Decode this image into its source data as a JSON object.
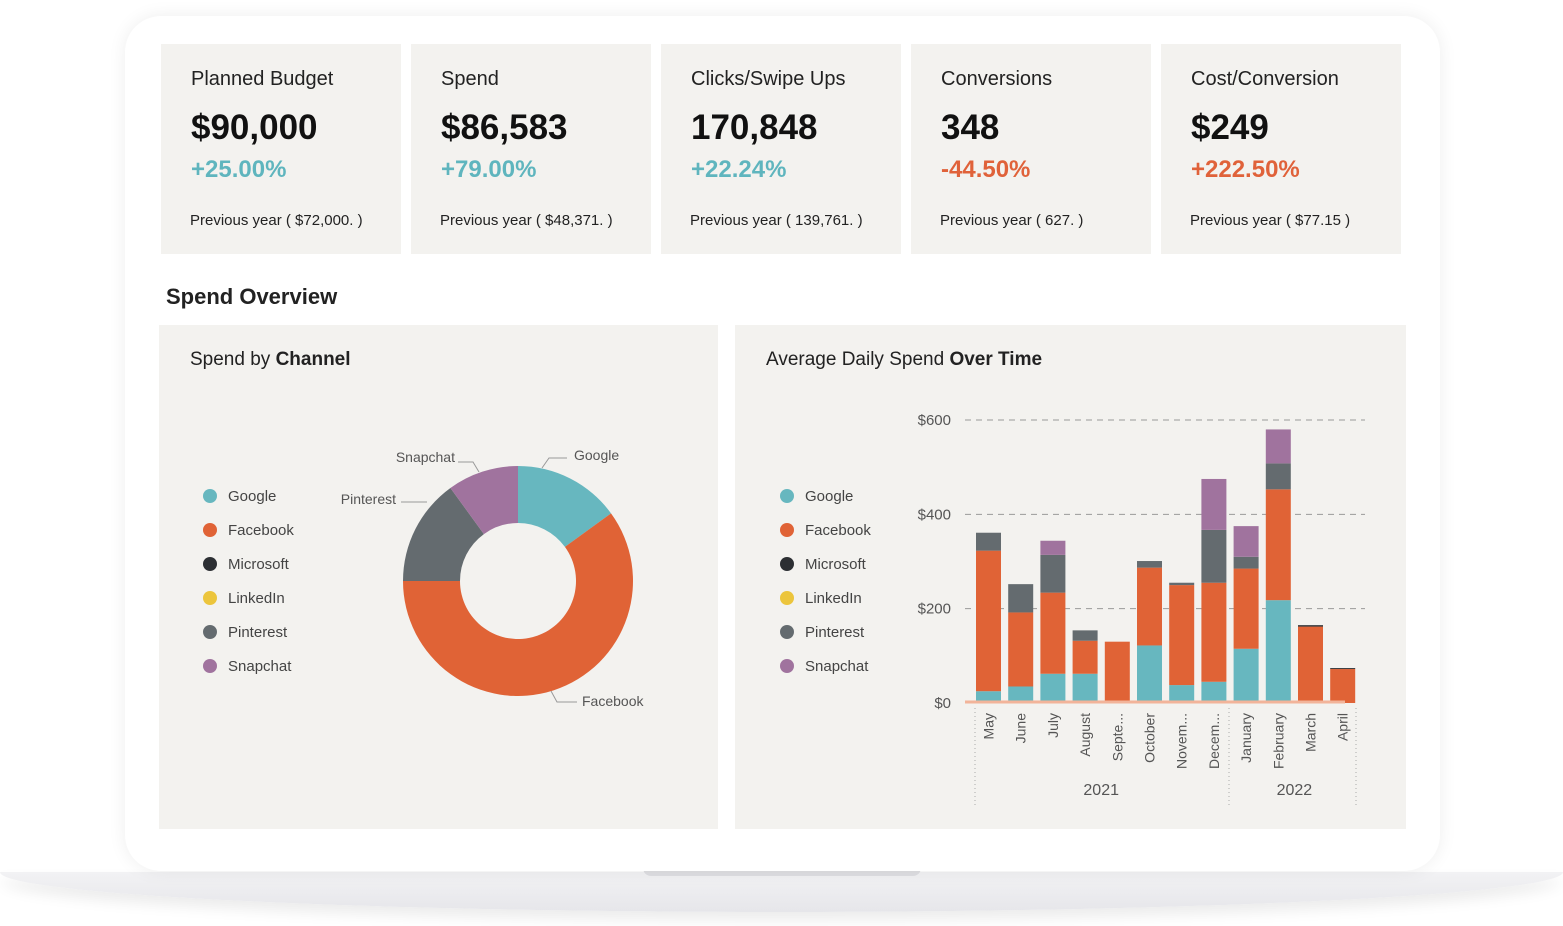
{
  "kpis": [
    {
      "label": "Planned Budget",
      "value": "$90,000",
      "change": "+25.00%",
      "change_color": "#5fb5be",
      "previous": "Previous year ( $72,000. )"
    },
    {
      "label": "Spend",
      "value": "$86,583",
      "change": "+79.00%",
      "change_color": "#5fb5be",
      "previous": "Previous year ( $48,371. )"
    },
    {
      "label": "Clicks/Swipe Ups",
      "value": "170,848",
      "change": "+22.24%",
      "change_color": "#5fb5be",
      "previous": "Previous year ( 139,761. )"
    },
    {
      "label": "Conversions",
      "value": "348",
      "change": "-44.50%",
      "change_color": "#e0623a",
      "previous": "Previous year ( 627. )"
    },
    {
      "label": "Cost/Conversion",
      "value": "$249",
      "change": "+222.50%",
      "change_color": "#e0623a",
      "previous": "Previous year ( $77.15 )"
    }
  ],
  "section_title": "Spend Overview",
  "channels": [
    {
      "name": "Google",
      "color": "#67b7bf"
    },
    {
      "name": "Facebook",
      "color": "#e06336"
    },
    {
      "name": "Microsoft",
      "color": "#2c2f33"
    },
    {
      "name": "LinkedIn",
      "color": "#ecc53c"
    },
    {
      "name": "Pinterest",
      "color": "#646b6f"
    },
    {
      "name": "Snapchat",
      "color": "#a0739e"
    }
  ],
  "donut_panel": {
    "title_pre": "Spend by ",
    "title_bold": "Channel"
  },
  "bar_panel": {
    "title_pre": "Average Daily Spend ",
    "title_bold": "Over Time"
  },
  "chart_data": [
    {
      "type": "pie",
      "title": "Spend by Channel",
      "donut": true,
      "labels": [
        "Google",
        "Facebook",
        "Pinterest",
        "Snapchat"
      ],
      "values": [
        15,
        60,
        15,
        10
      ],
      "colors": [
        "#67b7bf",
        "#e06336",
        "#646b6f",
        "#a0739e"
      ]
    },
    {
      "type": "bar",
      "stacked": true,
      "title": "Average Daily Spend Over Time",
      "categories": [
        "May",
        "June",
        "July",
        "August",
        "Septe...",
        "October",
        "Novem...",
        "Decem...",
        "January",
        "February",
        "March",
        "April"
      ],
      "groups": [
        {
          "label": "2021",
          "count": 8
        },
        {
          "label": "2022",
          "count": 4
        }
      ],
      "series": [
        {
          "name": "Google",
          "color": "#67b7bf",
          "values": [
            25,
            35,
            62,
            62,
            0,
            122,
            38,
            45,
            115,
            218,
            0,
            0
          ]
        },
        {
          "name": "Facebook",
          "color": "#e06336",
          "values": [
            298,
            157,
            172,
            70,
            130,
            165,
            212,
            210,
            170,
            235,
            162,
            72
          ]
        },
        {
          "name": "Microsoft",
          "color": "#2c2f33",
          "values": [
            0,
            0,
            0,
            0,
            0,
            0,
            0,
            0,
            0,
            0,
            3,
            2
          ]
        },
        {
          "name": "LinkedIn",
          "color": "#ecc53c",
          "values": [
            0,
            0,
            0,
            0,
            0,
            0,
            0,
            0,
            0,
            0,
            0,
            0
          ]
        },
        {
          "name": "Pinterest",
          "color": "#646b6f",
          "values": [
            38,
            60,
            80,
            22,
            0,
            14,
            5,
            112,
            25,
            55,
            0,
            0
          ]
        },
        {
          "name": "Snapchat",
          "color": "#a0739e",
          "values": [
            0,
            0,
            30,
            0,
            0,
            0,
            0,
            108,
            65,
            72,
            0,
            0
          ]
        }
      ],
      "yticks": [
        "$0",
        "$200",
        "$400",
        "$600"
      ],
      "ytick_values": [
        0,
        200,
        400,
        600
      ],
      "ylim": [
        0,
        600
      ]
    }
  ]
}
